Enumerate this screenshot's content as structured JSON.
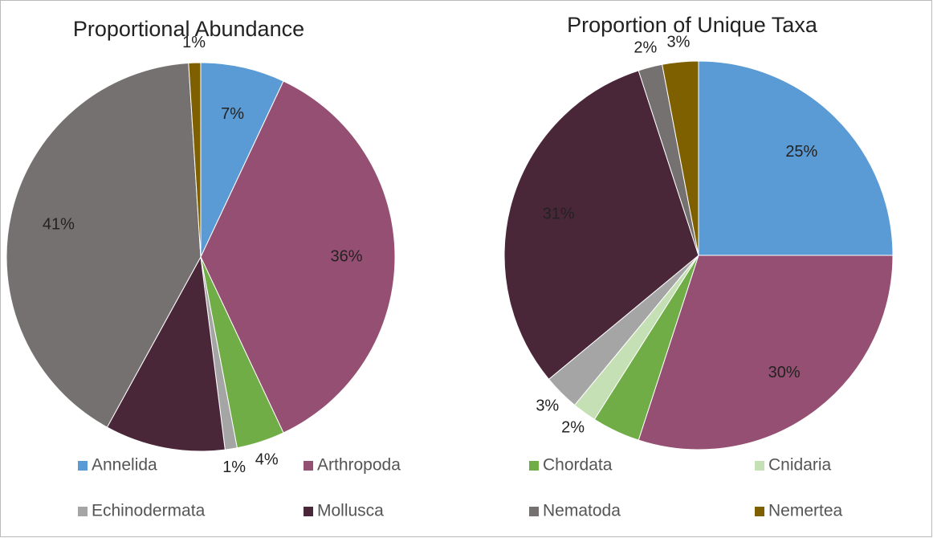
{
  "chart_data": [
    {
      "type": "pie",
      "title": "Proportional Abundance",
      "categories": [
        "Annelida",
        "Arthropoda",
        "Chordata",
        "Echinodermata",
        "Mollusca",
        "Nematoda",
        "Nemertea"
      ],
      "values": [
        7,
        36,
        4,
        1,
        10,
        41,
        1
      ],
      "value_labels": [
        "7%",
        "36%",
        "4%",
        "1%",
        null,
        "41%",
        "1%"
      ],
      "colors": [
        "#5b9bd5",
        "#954f72",
        "#70ad47",
        "#a5a5a5",
        "#4a2639",
        "#767171",
        "#7f6000"
      ]
    },
    {
      "type": "pie",
      "title": "Proportion of Unique Taxa",
      "categories": [
        "Annelida",
        "Arthropoda",
        "Chordata",
        "Cnidaria",
        "Echinodermata",
        "Mollusca",
        "Nematoda",
        "Nemertea"
      ],
      "values": [
        25,
        30,
        4,
        2,
        3,
        31,
        2,
        3
      ],
      "value_labels": [
        "25%",
        "30%",
        null,
        "2%",
        "3%",
        "31%",
        "2%",
        "3%"
      ],
      "colors": [
        "#5b9bd5",
        "#954f72",
        "#70ad47",
        "#c5e0b4",
        "#a5a5a5",
        "#4a2639",
        "#767171",
        "#7f6000"
      ]
    }
  ],
  "legend": {
    "names": [
      "Annelida",
      "Arthropoda",
      "Chordata",
      "Cnidaria",
      "Echinodermata",
      "Mollusca",
      "Nematoda",
      "Nemertea"
    ],
    "colors": [
      "#5b9bd5",
      "#954f72",
      "#70ad47",
      "#c5e0b4",
      "#a5a5a5",
      "#4a2639",
      "#767171",
      "#7f6000"
    ]
  }
}
